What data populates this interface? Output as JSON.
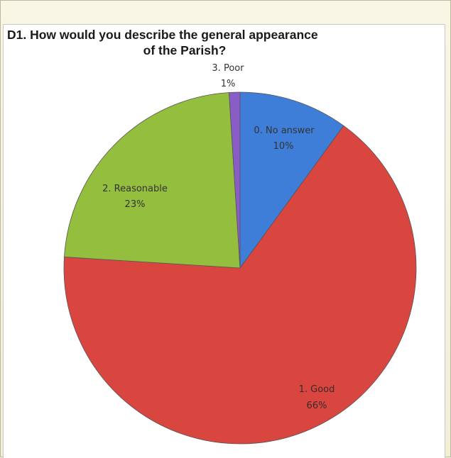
{
  "chart_data": {
    "type": "pie",
    "title_line1": "D1. How would you describe the general appearance",
    "title_line2": "of the Parish?",
    "slices": [
      {
        "label": "0. No answer",
        "pct_label": "10%",
        "value": 10,
        "color": "#3f7ed8"
      },
      {
        "label": "1. Good",
        "pct_label": "66%",
        "value": 66,
        "color": "#d94640"
      },
      {
        "label": "2. Reasonable",
        "pct_label": "23%",
        "value": 23,
        "color": "#94be3e"
      },
      {
        "label": "3. Poor",
        "pct_label": "1%",
        "value": 1,
        "color": "#8a5cc6"
      }
    ],
    "legend": "none",
    "data_labels": "category-and-percent"
  }
}
